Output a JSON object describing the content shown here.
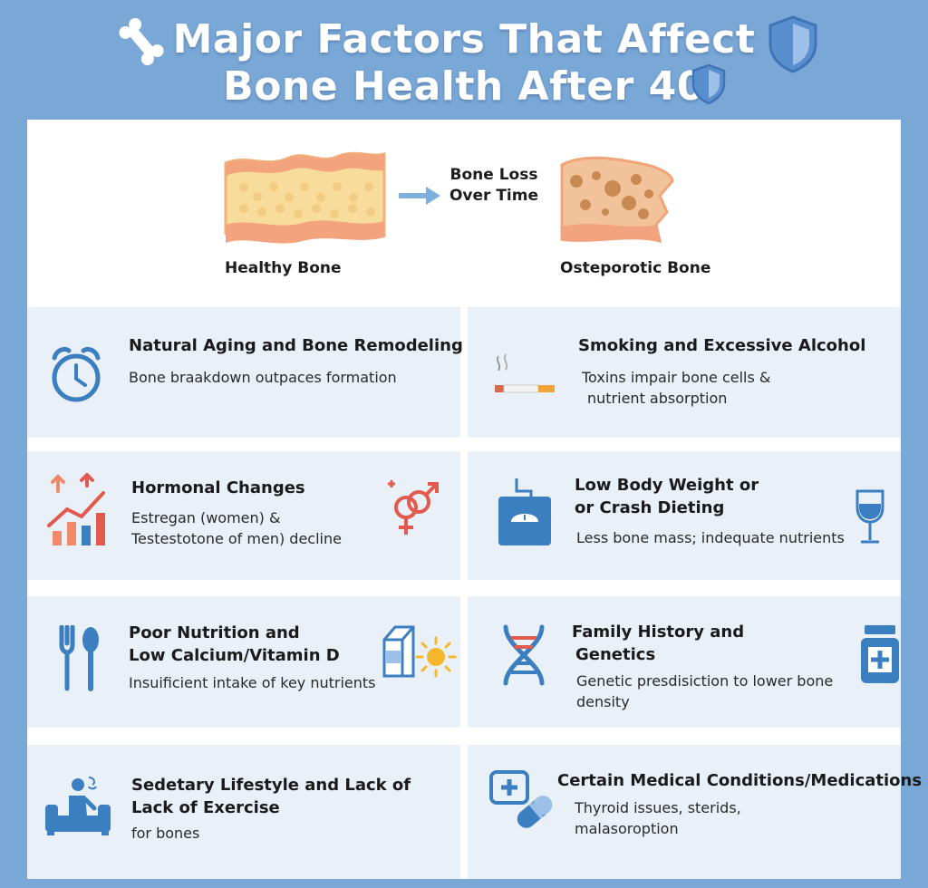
{
  "title": {
    "line1": "Major Factors That Affect",
    "line2": "Bone Health After 40"
  },
  "icons": [
    "bone-icon",
    "shield-icon",
    "alarm-clock-icon",
    "cigarette-icon",
    "rising-chart-icon",
    "gender-symbols-icon",
    "bathroom-scale-icon",
    "wine-glass-icon",
    "fork-spoon-icon",
    "milk-carton-icon",
    "sun-icon",
    "dna-icon",
    "medicine-bottle-icon",
    "person-on-couch-icon",
    "pill-capsule-icon"
  ],
  "colors": {
    "background": "#79a7d6",
    "card": "#eaf0f7",
    "icon_blue": "#3c7fc0",
    "accent_red": "#e25a4e",
    "bone_yellow": "#f7dc9c"
  },
  "hero": {
    "healthy_label": "Healthy Bone",
    "arrow_line1": "Bone Loss",
    "arrow_line2": "Over Time",
    "osteo_label": "Osteporotic Bone"
  },
  "factors": [
    {
      "title1": "Natural Aging and Bone Remodeling",
      "desc1": "Bone braakdown outpaces formation"
    },
    {
      "title1": "Smoking and Excessive Alcohol",
      "desc1": "Toxins impair bone cells &",
      "desc2": "nutrient absorption"
    },
    {
      "title1": "Hormonal Changes",
      "desc1": "Estregan (women) &",
      "desc2": "Testestotone of men) decline"
    },
    {
      "title1": "Low Body Weight or",
      "title2": "or Crash Dieting",
      "desc1": "Less bone mass; indequate nutrients"
    },
    {
      "title1": "Poor Nutrition and",
      "title2": "Low Calcium/Vitamin D",
      "desc1": "Insuificient intake of key nutrients"
    },
    {
      "title1": "Family History and",
      "title2": "Genetics",
      "desc1": "Genetic presdisiction to lower bone",
      "desc2": "density"
    },
    {
      "title1": "Sedetary Lifestyle and Lack of",
      "title2": "Lack of Exercise",
      "desc1": "for bones"
    },
    {
      "title1": "Certain Medical Conditions/Medications",
      "desc1": "Thyroid issues, sterids,",
      "desc2": "malasoroption"
    }
  ]
}
